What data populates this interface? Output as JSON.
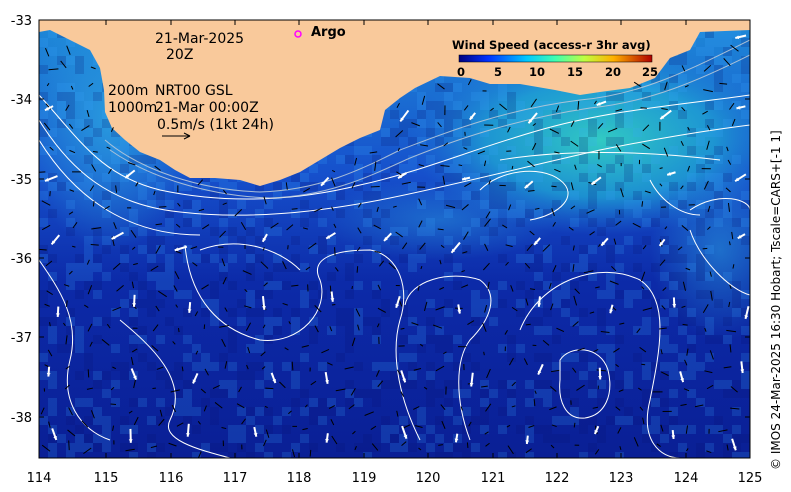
{
  "map": {
    "date": "21-Mar-2025",
    "time": "20Z",
    "depth_shallow": "200m",
    "depth_deep": "1000m",
    "product": "NRT00 GSL",
    "product_time": "21-Mar 00:00Z",
    "arrow_scale": "0.5m/s (1kt 24h)",
    "argo_label": "Argo",
    "credit": "© IMOS 24-Mar-2025 16:30 Hobart; Tscale=CARS+[-1 1]",
    "legend": {
      "title": "Wind Speed (access-r 3hr avg)",
      "ticks": [
        "0",
        "5",
        "10",
        "15",
        "20",
        "25"
      ]
    },
    "lon_ticks": [
      "114",
      "115",
      "116",
      "117",
      "118",
      "119",
      "120",
      "121",
      "122",
      "123",
      "124",
      "125"
    ],
    "lat_ticks": [
      "-33",
      "-34",
      "-35",
      "-36",
      "-37",
      "-38"
    ],
    "colors": {
      "land": "#f9c99b",
      "ocean_deep": "#0a1e9a",
      "ocean_mid": "#1a63d8",
      "ocean_warm": "#2cc3c8",
      "contour": "#ffffff",
      "argo": "#ff00ff"
    }
  }
}
